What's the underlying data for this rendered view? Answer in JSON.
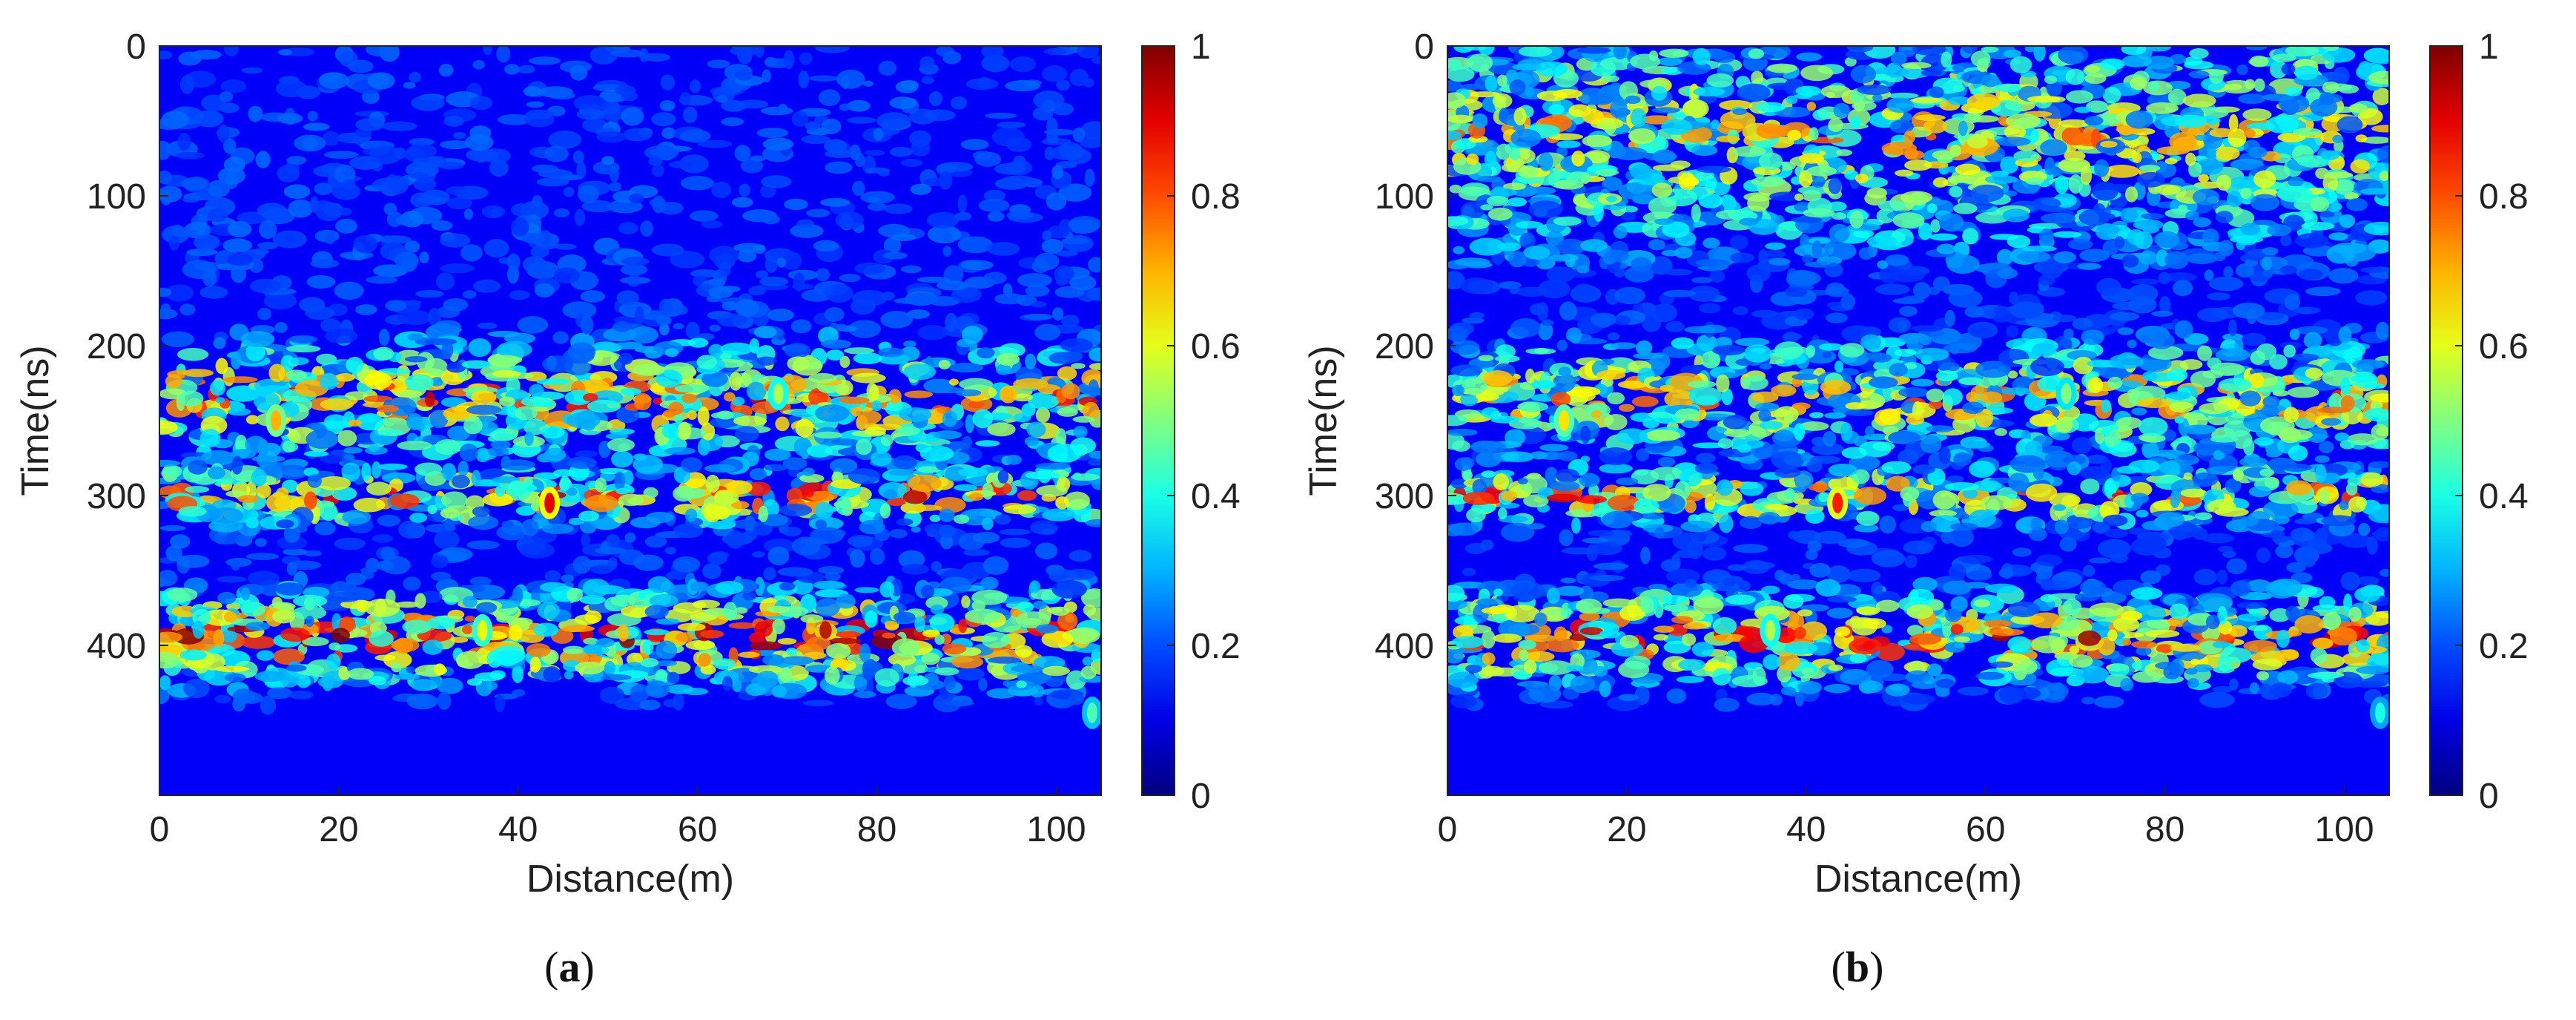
{
  "chart_data": [
    {
      "type": "heatmap",
      "panel_label": "a",
      "title": "",
      "xlabel": "Distance(m)",
      "ylabel": "Time(ns)",
      "xlim": [
        0,
        105
      ],
      "ylim": [
        500,
        0
      ],
      "xticks": [
        0,
        20,
        40,
        60,
        80,
        100
      ],
      "yticks": [
        0,
        100,
        200,
        300,
        400
      ],
      "colorbar": {
        "range": [
          0,
          1
        ],
        "ticks": [
          "0",
          "0.2",
          "0.4",
          "0.6",
          "0.8",
          "1"
        ],
        "colormap": "jet"
      },
      "description_of_field": "normalized amplitude; banded high-intensity layers near 220-260 ns, 290-310 ns and 380-410 ns; low intensity below 440 ns",
      "hotspots": [
        {
          "x": 43.5,
          "y": 305,
          "value": 0.9
        },
        {
          "x": 13,
          "y": 250,
          "value": 0.7
        },
        {
          "x": 36,
          "y": 390,
          "value": 0.6
        },
        {
          "x": 69,
          "y": 232,
          "value": 0.55
        },
        {
          "x": 104,
          "y": 445,
          "value": 0.45
        }
      ],
      "bands": [
        {
          "y_center": 235,
          "y_half_width": 30,
          "level": 0.55
        },
        {
          "y_center": 300,
          "y_half_width": 15,
          "level": 0.6
        },
        {
          "y_center": 395,
          "y_half_width": 25,
          "level": 0.65
        }
      ],
      "noise_seed": 7
    },
    {
      "type": "heatmap",
      "panel_label": "b",
      "title": "",
      "xlabel": "Distance(m)",
      "ylabel": "Time(ns)",
      "xlim": [
        0,
        105
      ],
      "ylim": [
        500,
        0
      ],
      "xticks": [
        0,
        20,
        40,
        60,
        80,
        100
      ],
      "yticks": [
        0,
        100,
        200,
        300,
        400
      ],
      "colorbar": {
        "range": [
          0,
          1
        ],
        "ticks": [
          "0",
          "0.2",
          "0.4",
          "0.6",
          "0.8",
          "1"
        ],
        "colormap": "jet"
      },
      "description_of_field": "normalized amplitude; stronger near-surface scattering in the top 150 ns than panel (a); same reflector layers at depth",
      "hotspots": [
        {
          "x": 43.5,
          "y": 305,
          "value": 0.85
        },
        {
          "x": 13,
          "y": 250,
          "value": 0.65
        },
        {
          "x": 36,
          "y": 390,
          "value": 0.55
        },
        {
          "x": 69,
          "y": 232,
          "value": 0.5
        },
        {
          "x": 104,
          "y": 445,
          "value": 0.4
        }
      ],
      "bands": [
        {
          "y_center": 60,
          "y_half_width": 60,
          "level": 0.45
        },
        {
          "y_center": 235,
          "y_half_width": 30,
          "level": 0.5
        },
        {
          "y_center": 300,
          "y_half_width": 15,
          "level": 0.55
        },
        {
          "y_center": 395,
          "y_half_width": 25,
          "level": 0.6
        }
      ],
      "noise_seed": 7
    }
  ],
  "captions": {
    "a": "a",
    "b": "b"
  }
}
